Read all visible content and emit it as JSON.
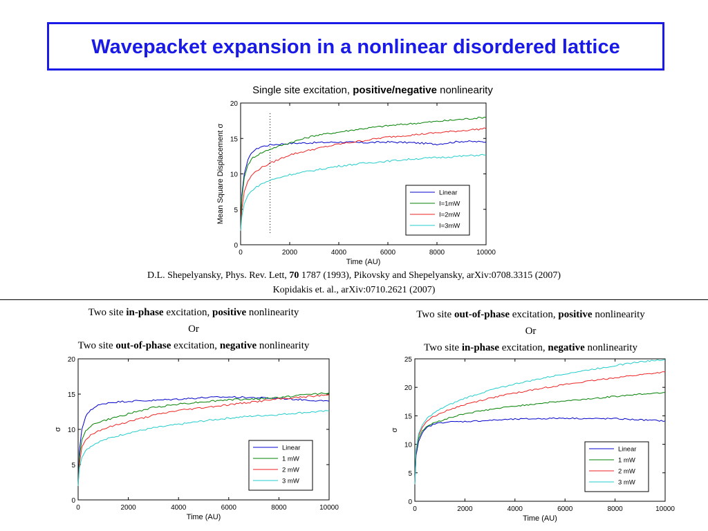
{
  "slide": {
    "title": "Wavepacket expansion in a nonlinear disordered lattice"
  },
  "top_caption": {
    "pre": "Single site excitation, ",
    "bold": "positive/negative",
    "post": " nonlinearity"
  },
  "references": {
    "line1_pre": "D.L. Shepelyansky, Phys. Rev. Lett, ",
    "line1_bold": "70",
    "line1_post": " 1787 (1993), Pikovsky and Shepelyansky, arXiv:0708.3315 (2007)",
    "line2": "Kopidakis  et. al.,  arXiv:0710.2621 (2007)"
  },
  "left_caption": {
    "l1_a": "Two site ",
    "l1_b": "in-phase",
    "l1_c": " excitation, ",
    "l1_d": "positive",
    "l1_e": " nonlinearity",
    "l2": "Or",
    "l3_a": "Two site ",
    "l3_b": "out-of-phase",
    "l3_c": " excitation, ",
    "l3_d": "negative",
    "l3_e": " nonlinearity"
  },
  "right_caption": {
    "l1_a": "Two site ",
    "l1_b": "out-of-phase",
    "l1_c": " excitation, ",
    "l1_d": "positive",
    "l1_e": " nonlinearity",
    "l2": "Or",
    "l3_a": "Two site ",
    "l3_b": "in-phase",
    "l3_c": " excitation, ",
    "l3_d": "negative",
    "l3_e": " nonlinearity"
  },
  "colors": {
    "title": "#1a1ae6",
    "linear": "#0000cc",
    "green": "#008000",
    "red": "#ee2222",
    "cyan": "#22cccc"
  },
  "chart_data": [
    {
      "type": "line",
      "xlabel": "Time (AU)",
      "ylabel": "Mean Square Displacement σ",
      "xlim": [
        0,
        10000
      ],
      "ylim": [
        0,
        20
      ],
      "xticks": [
        0,
        2000,
        4000,
        6000,
        8000,
        10000
      ],
      "yticks": [
        0,
        5,
        10,
        15,
        20
      ],
      "legend_position": "lower-right",
      "vline_x": 1200,
      "x": [
        0,
        50,
        150,
        300,
        500,
        800,
        1200,
        2000,
        3000,
        4000,
        5000,
        6000,
        7000,
        8000,
        9000,
        10000
      ],
      "series": [
        {
          "name": "Linear",
          "color": "#0000cc",
          "values": [
            2,
            7,
            10,
            12,
            13.2,
            13.8,
            14.1,
            14.3,
            14.4,
            14.5,
            14.4,
            14.5,
            14.4,
            14.2,
            14.6,
            14.5
          ]
        },
        {
          "name": "I=1mW",
          "color": "#008000",
          "values": [
            2,
            6.5,
            9.5,
            11.3,
            12.3,
            12.9,
            13.5,
            14.4,
            15.4,
            15.9,
            16.4,
            16.8,
            17.1,
            17.4,
            17.7,
            18
          ]
        },
        {
          "name": "I=2mW",
          "color": "#ee2222",
          "values": [
            2,
            5,
            7.5,
            9,
            10,
            10.8,
            11.5,
            12.7,
            13.5,
            14.2,
            14.7,
            15.2,
            15.5,
            15.8,
            16.1,
            16.4
          ]
        },
        {
          "name": "I=3mW",
          "color": "#22cccc",
          "values": [
            2,
            4,
            5.8,
            7,
            7.8,
            8.5,
            9.1,
            9.9,
            10.5,
            11.1,
            11.5,
            11.8,
            12.1,
            12.3,
            12.5,
            12.7
          ]
        }
      ]
    },
    {
      "type": "line",
      "xlabel": "Time (AU)",
      "ylabel": "σ",
      "xlim": [
        0,
        10000
      ],
      "ylim": [
        0,
        20
      ],
      "xticks": [
        0,
        2000,
        4000,
        6000,
        8000,
        10000
      ],
      "yticks": [
        0,
        5,
        10,
        15,
        20
      ],
      "legend_position": "lower-right",
      "x": [
        0,
        50,
        150,
        300,
        500,
        800,
        1200,
        2000,
        3000,
        4000,
        5000,
        6000,
        7000,
        8000,
        9000,
        10000
      ],
      "series": [
        {
          "name": "Linear",
          "color": "#0000cc",
          "values": [
            2,
            7,
            10,
            11.8,
            12.8,
            13.4,
            13.8,
            14,
            14.1,
            14.3,
            14.5,
            14.6,
            14.5,
            14.4,
            14.2,
            14
          ]
        },
        {
          "name": "1 mW",
          "color": "#008000",
          "values": [
            2,
            6,
            8.5,
            9.8,
            10.5,
            11,
            11.4,
            12.2,
            13.1,
            13.6,
            13.9,
            14.2,
            14.3,
            14.5,
            14.9,
            15.2
          ]
        },
        {
          "name": "2 mW",
          "color": "#ee2222",
          "values": [
            2,
            5,
            7.5,
            8.5,
            9.2,
            9.8,
            10.3,
            11.1,
            12,
            12.7,
            13.1,
            13.5,
            13.9,
            14.3,
            14.6,
            14.9
          ]
        },
        {
          "name": "3 mW",
          "color": "#22cccc",
          "values": [
            2,
            4.5,
            6,
            7,
            7.6,
            8.2,
            8.7,
            9.5,
            10.2,
            10.7,
            11.2,
            11.6,
            11.9,
            12.1,
            12.4,
            12.6
          ]
        }
      ]
    },
    {
      "type": "line",
      "xlabel": "Time (AU)",
      "ylabel": "σ",
      "xlim": [
        0,
        10000
      ],
      "ylim": [
        0,
        25
      ],
      "xticks": [
        0,
        2000,
        4000,
        6000,
        8000,
        10000
      ],
      "yticks": [
        0,
        5,
        10,
        15,
        20,
        25
      ],
      "legend_position": "lower-right",
      "x": [
        0,
        50,
        150,
        300,
        500,
        800,
        1200,
        2000,
        3000,
        4000,
        5000,
        6000,
        7000,
        8000,
        9000,
        10000
      ],
      "series": [
        {
          "name": "Linear",
          "color": "#0000cc",
          "values": [
            3,
            8,
            10.5,
            12,
            13,
            13.6,
            13.9,
            14,
            14.2,
            14.4,
            14.5,
            14.6,
            14.5,
            14.5,
            14.3,
            14.1
          ]
        },
        {
          "name": "1 mW",
          "color": "#008000",
          "values": [
            3,
            8.5,
            11,
            12.4,
            13.2,
            13.8,
            14.4,
            15.4,
            16.1,
            16.7,
            17.2,
            17.6,
            18,
            18.4,
            18.8,
            19.1
          ]
        },
        {
          "name": "2 mW",
          "color": "#ee2222",
          "values": [
            3,
            8.8,
            11.5,
            13,
            14.2,
            15,
            15.8,
            17,
            18.1,
            19,
            19.8,
            20.5,
            21.1,
            21.7,
            22.2,
            22.7
          ]
        },
        {
          "name": "3 mW",
          "color": "#22cccc",
          "values": [
            3,
            9,
            11.8,
            13.4,
            14.6,
            15.6,
            16.6,
            18.1,
            19.5,
            20.6,
            21.5,
            22.4,
            23.1,
            23.8,
            24.5,
            24.9
          ]
        }
      ]
    }
  ]
}
